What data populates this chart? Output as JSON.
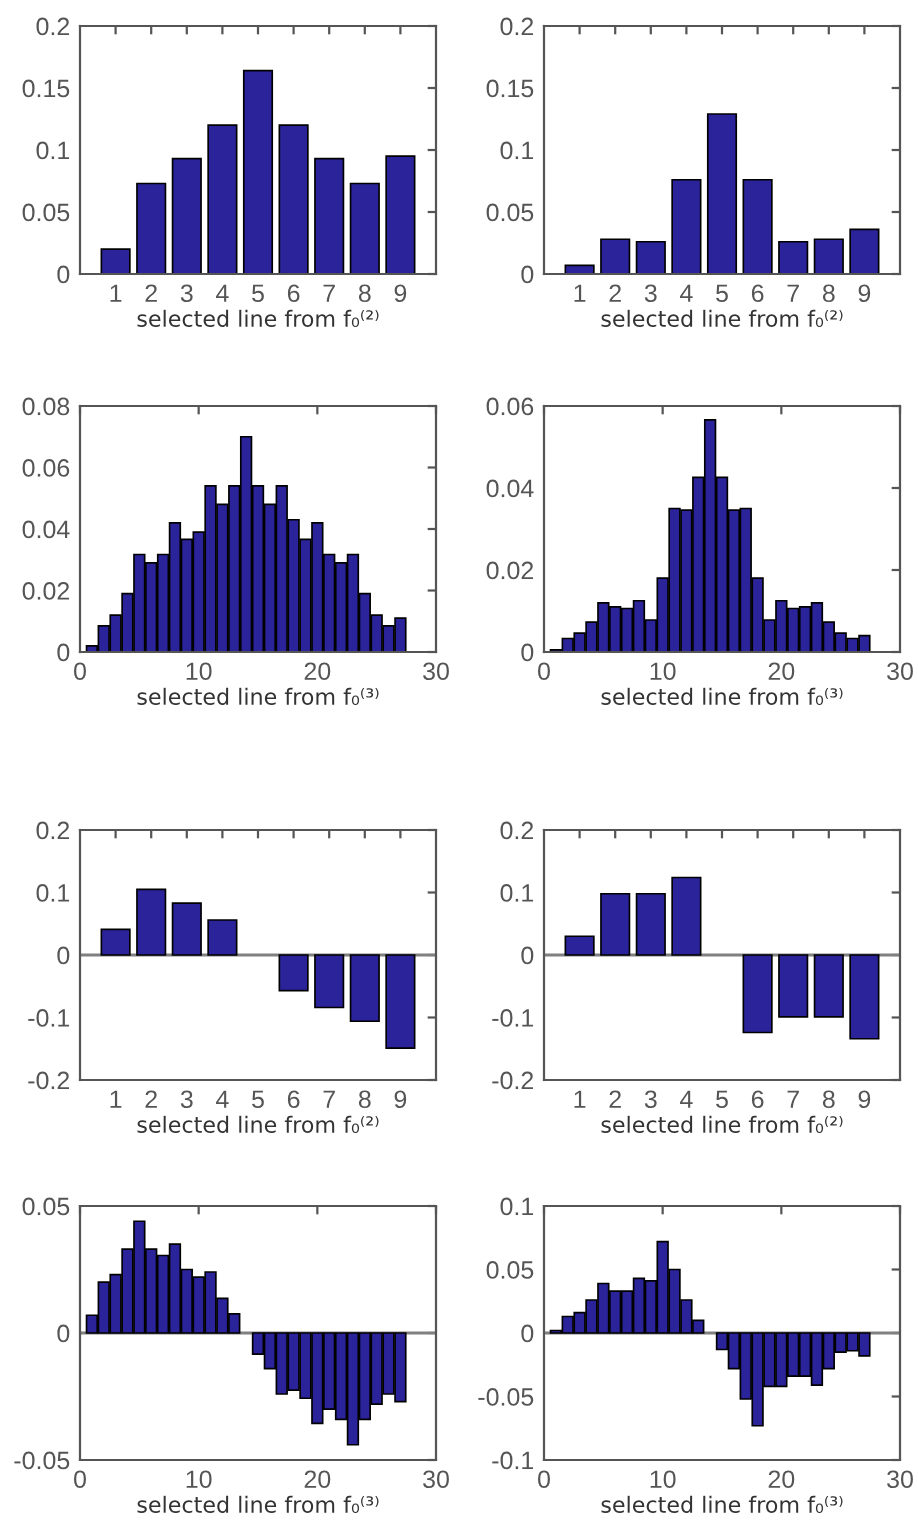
{
  "chart_data": [
    {
      "type": "bar",
      "xlabel": "selected line from f₀⁽²⁾",
      "categories": [
        "1",
        "2",
        "3",
        "4",
        "5",
        "6",
        "7",
        "8",
        "9"
      ],
      "series": [
        {
          "color": "#2b2399",
          "values": [
            0.02,
            0.073,
            0.093,
            0.12,
            0.164,
            0.12,
            0.093,
            0.073,
            0.095
          ]
        }
      ],
      "ylim": [
        0,
        0.2
      ],
      "yticks": [
        0,
        0.05,
        0.1,
        0.15,
        0.2
      ],
      "grid": false,
      "legend": false
    },
    {
      "type": "bar",
      "xlabel": "selected line from f₀⁽²⁾",
      "categories": [
        "1",
        "2",
        "3",
        "4",
        "5",
        "6",
        "7",
        "8",
        "9"
      ],
      "series": [
        {
          "color": "#2b2399",
          "values": [
            0.007,
            0.028,
            0.026,
            0.076,
            0.129,
            0.076,
            0.026,
            0.028,
            0.036
          ]
        }
      ],
      "ylim": [
        0,
        0.2
      ],
      "yticks": [
        0,
        0.05,
        0.1,
        0.15,
        0.2
      ],
      "grid": false,
      "legend": false
    },
    {
      "type": "bar",
      "xlabel": "selected line from f₀⁽³⁾",
      "x": [
        1,
        2,
        3,
        4,
        5,
        6,
        7,
        8,
        9,
        10,
        11,
        12,
        13,
        14,
        15,
        16,
        17,
        18,
        19,
        20,
        21,
        22,
        23,
        24,
        25,
        26,
        27
      ],
      "series": [
        {
          "color": "#2b2399",
          "values": [
            0.002,
            0.0085,
            0.012,
            0.019,
            0.0317,
            0.029,
            0.0317,
            0.042,
            0.0366,
            0.039,
            0.054,
            0.048,
            0.054,
            0.07,
            0.054,
            0.048,
            0.054,
            0.043,
            0.0366,
            0.042,
            0.0317,
            0.029,
            0.0317,
            0.019,
            0.012,
            0.0085,
            0.011
          ]
        }
      ],
      "xlim": [
        0,
        30
      ],
      "xticks": [
        0,
        10,
        20,
        30
      ],
      "ylim": [
        0,
        0.08
      ],
      "yticks": [
        0,
        0.02,
        0.04,
        0.06,
        0.08
      ],
      "grid": false,
      "legend": false
    },
    {
      "type": "bar",
      "xlabel": "selected line from f₀⁽³⁾",
      "x": [
        1,
        2,
        3,
        4,
        5,
        6,
        7,
        8,
        9,
        10,
        11,
        12,
        13,
        14,
        15,
        16,
        17,
        18,
        19,
        20,
        21,
        22,
        23,
        24,
        25,
        26,
        27
      ],
      "series": [
        {
          "color": "#2b2399",
          "values": [
            0.0005,
            0.0033,
            0.0046,
            0.0073,
            0.012,
            0.011,
            0.0106,
            0.0125,
            0.0078,
            0.018,
            0.035,
            0.0346,
            0.0426,
            0.0566,
            0.0426,
            0.0346,
            0.035,
            0.018,
            0.0078,
            0.0125,
            0.0106,
            0.011,
            0.012,
            0.0073,
            0.0046,
            0.0033,
            0.004
          ]
        }
      ],
      "xlim": [
        0,
        30
      ],
      "xticks": [
        0,
        10,
        20,
        30
      ],
      "ylim": [
        0,
        0.06
      ],
      "yticks": [
        0,
        0.02,
        0.04,
        0.06
      ],
      "grid": false,
      "legend": false
    },
    {
      "type": "bar",
      "xlabel": "selected line from f₀⁽²⁾",
      "categories": [
        "1",
        "2",
        "3",
        "4",
        "5",
        "6",
        "7",
        "8",
        "9"
      ],
      "series": [
        {
          "color": "#2b2399",
          "values": [
            0.041,
            0.105,
            0.083,
            0.056,
            null,
            -0.057,
            -0.084,
            -0.106,
            -0.149
          ]
        }
      ],
      "ylim": [
        -0.2,
        0.2
      ],
      "yticks": [
        -0.2,
        -0.1,
        0,
        0.1,
        0.2
      ],
      "ref_lines": [
        {
          "axis": "y",
          "value": 0,
          "color": "#808080"
        }
      ],
      "grid": false,
      "legend": false
    },
    {
      "type": "bar",
      "xlabel": "selected line from f₀⁽²⁾",
      "categories": [
        "1",
        "2",
        "3",
        "4",
        "5",
        "6",
        "7",
        "8",
        "9"
      ],
      "series": [
        {
          "color": "#2b2399",
          "values": [
            0.03,
            0.098,
            0.098,
            0.124,
            null,
            -0.124,
            -0.099,
            -0.099,
            -0.134
          ]
        }
      ],
      "ylim": [
        -0.2,
        0.2
      ],
      "yticks": [
        -0.2,
        -0.1,
        0,
        0.1,
        0.2
      ],
      "ref_lines": [
        {
          "axis": "y",
          "value": 0,
          "color": "#808080"
        }
      ],
      "grid": false,
      "legend": false
    },
    {
      "type": "bar",
      "xlabel": "selected line from f₀⁽³⁾",
      "x": [
        1,
        2,
        3,
        4,
        5,
        6,
        7,
        8,
        9,
        10,
        11,
        12,
        13,
        14,
        15,
        16,
        17,
        18,
        19,
        20,
        21,
        22,
        23,
        24,
        25,
        26,
        27
      ],
      "series": [
        {
          "color": "#2b2399",
          "values": [
            0.007,
            0.02,
            0.023,
            0.033,
            0.044,
            0.033,
            0.0305,
            0.035,
            0.025,
            0.022,
            0.024,
            0.0136,
            0.0075,
            null,
            -0.0083,
            -0.014,
            -0.024,
            -0.0225,
            -0.0257,
            -0.0356,
            -0.03,
            -0.034,
            -0.044,
            -0.034,
            -0.028,
            -0.024,
            -0.027
          ]
        }
      ],
      "xlim": [
        0,
        30
      ],
      "xticks": [
        0,
        10,
        20,
        30
      ],
      "ylim": [
        -0.05,
        0.05
      ],
      "yticks": [
        -0.05,
        0,
        0.05
      ],
      "ref_lines": [
        {
          "axis": "y",
          "value": 0,
          "color": "#808080"
        }
      ],
      "grid": false,
      "legend": false
    },
    {
      "type": "bar",
      "xlabel": "selected line from f₀⁽³⁾",
      "x": [
        1,
        2,
        3,
        4,
        5,
        6,
        7,
        8,
        9,
        10,
        11,
        12,
        13,
        14,
        15,
        16,
        17,
        18,
        19,
        20,
        21,
        22,
        23,
        24,
        25,
        26,
        27
      ],
      "series": [
        {
          "color": "#2b2399",
          "values": [
            0.002,
            0.013,
            0.016,
            0.026,
            0.039,
            0.033,
            0.033,
            0.043,
            0.041,
            0.072,
            0.05,
            0.026,
            0.01,
            null,
            -0.013,
            -0.028,
            -0.052,
            -0.073,
            -0.042,
            -0.042,
            -0.034,
            -0.034,
            -0.041,
            -0.028,
            -0.015,
            -0.014,
            -0.018
          ]
        }
      ],
      "xlim": [
        0,
        30
      ],
      "xticks": [
        0,
        10,
        20,
        30
      ],
      "ylim": [
        -0.1,
        0.1
      ],
      "yticks": [
        -0.1,
        -0.05,
        0,
        0.05,
        0.1
      ],
      "ref_lines": [
        {
          "axis": "y",
          "value": 0,
          "color": "#808080"
        }
      ],
      "grid": false,
      "legend": false
    }
  ]
}
